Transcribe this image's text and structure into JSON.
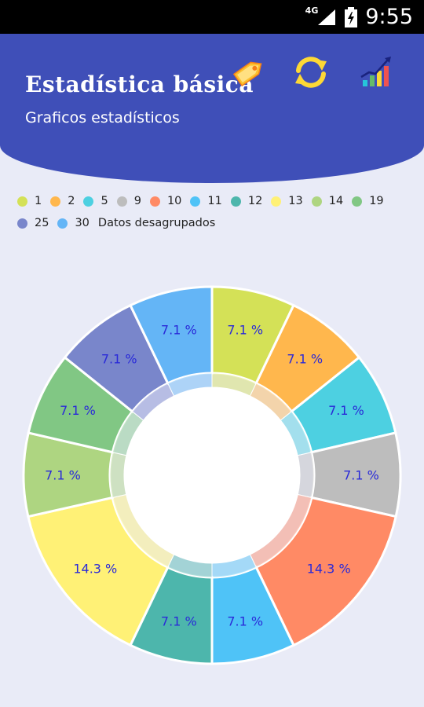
{
  "status_bar": {
    "time": "9:55",
    "network": "4G"
  },
  "header": {
    "title": "Estadística básica",
    "subtitle": "Graficos estadísticos",
    "icons": [
      "tag-icon",
      "refresh-icon",
      "statistics-chart-icon"
    ]
  },
  "legend": {
    "title": "Datos desagrupados"
  },
  "chart_data": {
    "type": "pie",
    "title": "",
    "variant": "donut",
    "categories": [
      "1",
      "2",
      "5",
      "9",
      "10",
      "11",
      "12",
      "13",
      "14",
      "19",
      "25",
      "30"
    ],
    "values": [
      7.1,
      7.1,
      7.1,
      7.1,
      14.3,
      7.1,
      7.1,
      14.3,
      7.1,
      7.1,
      7.1,
      7.1
    ],
    "labels": [
      "7.1 %",
      "7.1 %",
      "7.1 %",
      "7.1 %",
      "14.3 %",
      "7.1 %",
      "7.1 %",
      "14.3 %",
      "7.1 %",
      "7.1 %",
      "7.1 %",
      "7.1 %"
    ],
    "colors": [
      "#d4e157",
      "#ffb74d",
      "#4dd0e1",
      "#bdbdbd",
      "#ff8a65",
      "#4fc3f7",
      "#4db6ac",
      "#fff176",
      "#aed581",
      "#81c784",
      "#7986cb",
      "#64b5f6"
    ],
    "label_color": "#2a2ad8",
    "legend_position": "top-left"
  }
}
